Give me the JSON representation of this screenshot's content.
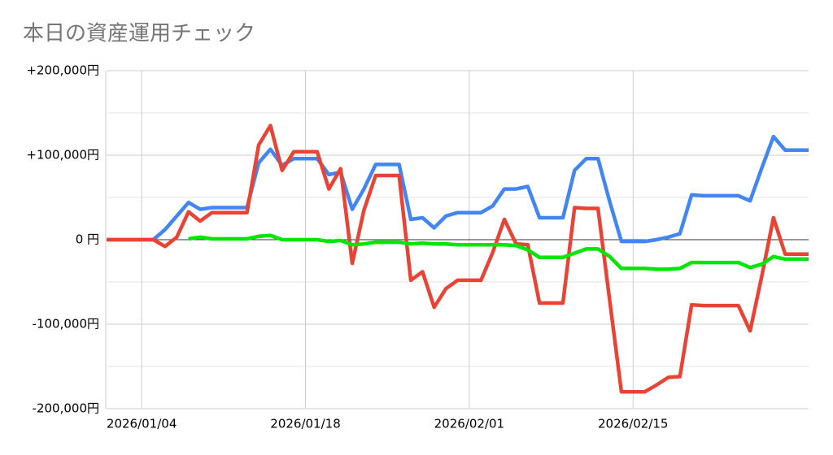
{
  "chart_data": {
    "type": "line",
    "title": "本日の資産運用チェック",
    "x": [
      "2026/01/01",
      "2026/01/02",
      "2026/01/03",
      "2026/01/04",
      "2026/01/05",
      "2026/01/06",
      "2026/01/07",
      "2026/01/08",
      "2026/01/09",
      "2026/01/10",
      "2026/01/11",
      "2026/01/12",
      "2026/01/13",
      "2026/01/14",
      "2026/01/15",
      "2026/01/16",
      "2026/01/17",
      "2026/01/18",
      "2026/01/19",
      "2026/01/20",
      "2026/01/21",
      "2026/01/22",
      "2026/01/23",
      "2026/01/24",
      "2026/01/25",
      "2026/01/26",
      "2026/01/27",
      "2026/01/28",
      "2026/01/29",
      "2026/01/30",
      "2026/01/31",
      "2026/02/01",
      "2026/02/02",
      "2026/02/03",
      "2026/02/04",
      "2026/02/05",
      "2026/02/06",
      "2026/02/07",
      "2026/02/08",
      "2026/02/09",
      "2026/02/10",
      "2026/02/11",
      "2026/02/12",
      "2026/02/13",
      "2026/02/14",
      "2026/02/15",
      "2026/02/16",
      "2026/02/17",
      "2026/02/18",
      "2026/02/19",
      "2026/02/20",
      "2026/02/21",
      "2026/02/22",
      "2026/02/23",
      "2026/02/24",
      "2026/02/25",
      "2026/02/26",
      "2026/02/27",
      "2026/02/28",
      "2026/03/01",
      "2026/03/02"
    ],
    "series": [
      {
        "color": "#4285f4",
        "values": [
          0,
          0,
          0,
          0,
          0,
          12000,
          28000,
          44000,
          36000,
          38000,
          38000,
          38000,
          38000,
          91000,
          107000,
          88000,
          96000,
          96000,
          96000,
          77000,
          80000,
          36000,
          60000,
          89000,
          89000,
          89000,
          24000,
          26000,
          14000,
          28000,
          32000,
          32000,
          32000,
          40000,
          60000,
          60000,
          63000,
          26000,
          26000,
          26000,
          82000,
          96000,
          96000,
          45000,
          -2000,
          -2000,
          -2000,
          0,
          3000,
          7000,
          53000,
          52000,
          52000,
          52000,
          52000,
          46000,
          85000,
          122000,
          106000,
          106000,
          106000
        ]
      },
      {
        "color": "#ea4335",
        "values": [
          0,
          0,
          0,
          0,
          0,
          -8000,
          3000,
          33000,
          22000,
          32000,
          32000,
          32000,
          32000,
          112000,
          135000,
          82000,
          104000,
          104000,
          104000,
          60000,
          84000,
          -28000,
          35000,
          76000,
          76000,
          76000,
          -48000,
          -38000,
          -80000,
          -58000,
          -48000,
          -48000,
          -48000,
          -15000,
          24000,
          -5000,
          -6000,
          -75000,
          -75000,
          -75000,
          38000,
          37000,
          37000,
          -72000,
          -180000,
          -180000,
          -180000,
          -172000,
          -163000,
          -162000,
          -77000,
          -78000,
          -78000,
          -78000,
          -78000,
          -108000,
          -43000,
          26000,
          -17000,
          -17000,
          -17000
        ]
      },
      {
        "color": "#00e600",
        "values": [
          null,
          null,
          null,
          null,
          null,
          null,
          null,
          1000,
          3000,
          1000,
          1000,
          1000,
          1000,
          4000,
          5000,
          0,
          0,
          0,
          0,
          -2000,
          -1000,
          -6000,
          -5000,
          -3000,
          -3000,
          -3000,
          -5000,
          -4000,
          -5000,
          -5000,
          -6000,
          -6000,
          -6000,
          -6000,
          -6000,
          -7000,
          -12000,
          -21000,
          -21000,
          -21000,
          -16000,
          -11000,
          -11000,
          -20000,
          -34000,
          -34000,
          -34000,
          -35000,
          -35000,
          -34000,
          -27000,
          -27000,
          -27000,
          -27000,
          -27000,
          -33000,
          -29000,
          -20000,
          -23000,
          -23000,
          -23000
        ]
      }
    ],
    "xlim": [
      "2026/01/01",
      "2026/03/02"
    ],
    "xticks": [
      "2026/01/04",
      "2026/01/18",
      "2026/02/01",
      "2026/02/15"
    ],
    "ylim": [
      -200000,
      200000
    ],
    "yticks": [
      {
        "value": 200000,
        "label": "+200,000円"
      },
      {
        "value": 100000,
        "label": "+100,000円"
      },
      {
        "value": 0,
        "label": "0 円"
      },
      {
        "value": -100000,
        "label": "-100,000円"
      },
      {
        "value": -200000,
        "label": "-200,000円"
      }
    ],
    "minor_yticks": [
      150000,
      50000,
      -50000,
      -150000
    ],
    "grid": true
  }
}
